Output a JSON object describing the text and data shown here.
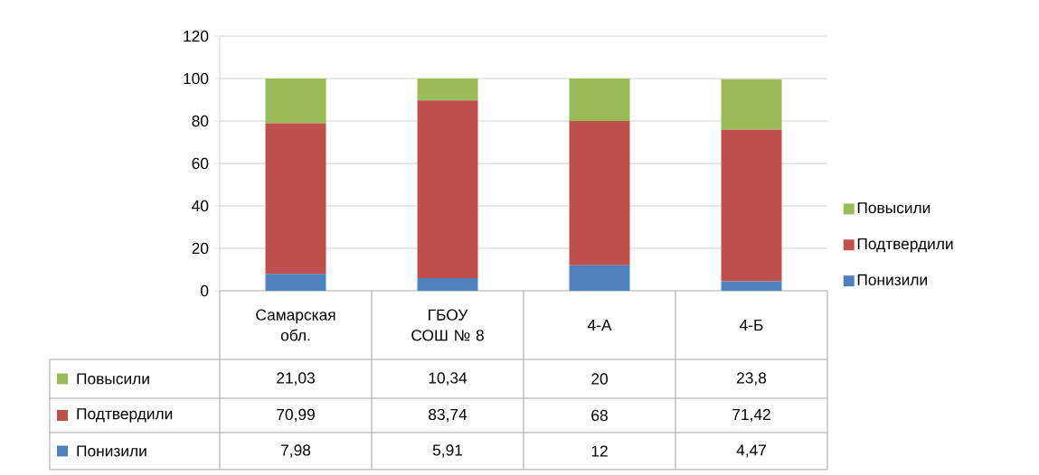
{
  "chart_data": {
    "type": "bar",
    "stacked": true,
    "categories": [
      "Самарская обл.",
      "ГБОУ СОШ № 8",
      "4-А",
      "4-Б"
    ],
    "series": [
      {
        "name": "Понизили",
        "color": "#4f81bd",
        "values": [
          7.98,
          5.91,
          12,
          4.47
        ],
        "value_labels": [
          "7,98",
          "5,91",
          "12",
          "4,47"
        ]
      },
      {
        "name": "Подтвердили",
        "color": "#c0504d",
        "values": [
          70.99,
          83.74,
          68,
          71.42
        ],
        "value_labels": [
          "70,99",
          "83,74",
          "68",
          "71,42"
        ]
      },
      {
        "name": "Повысили",
        "color": "#9bbb59",
        "values": [
          21.03,
          10.34,
          20,
          23.8
        ],
        "value_labels": [
          "21,03",
          "10,34",
          "20",
          "23,8"
        ]
      }
    ],
    "ylim": [
      0,
      120
    ],
    "yticks": [
      0,
      20,
      40,
      60,
      80,
      100,
      120
    ],
    "grid": "y",
    "legend": "right"
  }
}
